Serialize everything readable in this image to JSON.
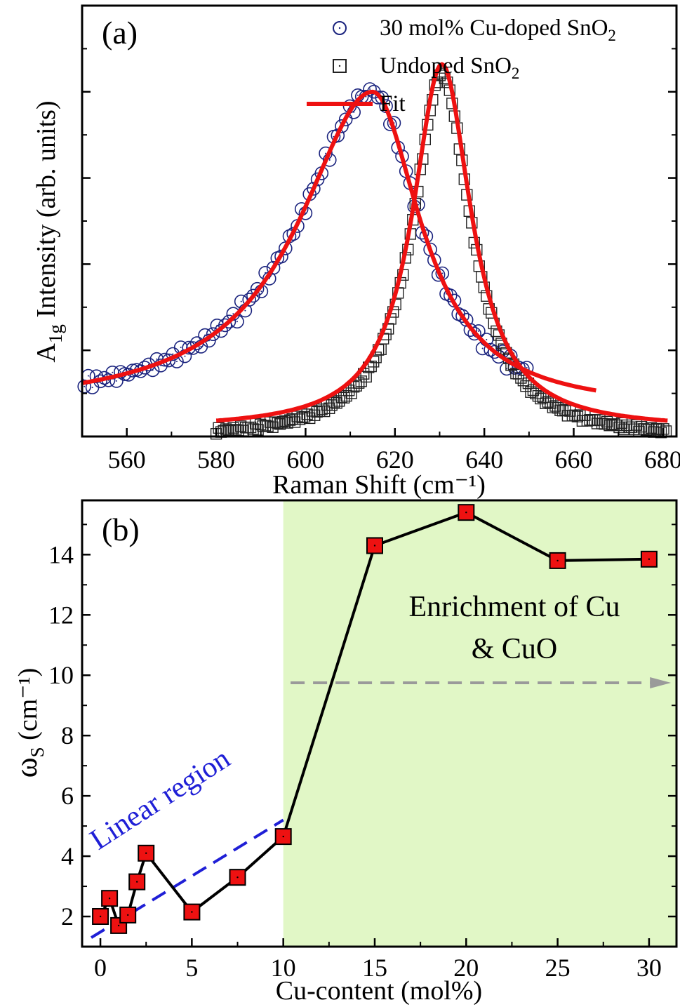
{
  "chart_data": [
    {
      "type": "scatter",
      "panel_label": "(a)",
      "xlabel": "Raman Shift (cm⁻¹)",
      "ylabel_main": "A",
      "ylabel_sub": "1g",
      "ylabel_rest": " Intensity (arb. units)",
      "xlim": [
        550,
        683
      ],
      "ylim": [
        0,
        1.25
      ],
      "xticks": [
        "560",
        "580",
        "600",
        "620",
        "640",
        "660",
        "680"
      ],
      "ytick_labels_shown": false,
      "legend": {
        "position": "top-right",
        "entries": [
          {
            "text": "30 mol% Cu-doped SnO",
            "sub": "2",
            "marker": "circle"
          },
          {
            "text": "Undoped SnO",
            "sub": "2",
            "marker": "square"
          },
          {
            "text": "Fit",
            "sub": "",
            "marker": "line"
          }
        ]
      },
      "series": [
        {
          "name": "30 mol% Cu-doped SnO2",
          "marker": "circle",
          "color": "#1a237e",
          "peak_center": 615,
          "fit_amplitude": 1.0,
          "baseline": 0.075,
          "hwhm_left": 20,
          "hwhm_right": 13,
          "x_range": [
            550,
            650
          ]
        },
        {
          "name": "Undoped SnO2",
          "marker": "square",
          "color": "#222222",
          "peak_center": 630.5,
          "fit_amplitude": 1.08,
          "baseline": 0.02,
          "hwhm_left": 8,
          "hwhm_right": 8,
          "x_range": [
            580,
            681
          ]
        }
      ],
      "fit_color": "#ee1111"
    },
    {
      "type": "line",
      "panel_label": "(b)",
      "xlabel": "Cu-content (mol%)",
      "ylabel_main": "ω",
      "ylabel_sub": "S",
      "ylabel_rest": " (cm⁻¹)",
      "xlim": [
        -1,
        31.5
      ],
      "ylim": [
        1.0,
        15.8
      ],
      "xticks": [
        "0",
        "5",
        "10",
        "15",
        "20",
        "25",
        "30"
      ],
      "yticks": [
        "2",
        "4",
        "6",
        "8",
        "10",
        "12",
        "14"
      ],
      "series": [
        {
          "name": "",
          "marker": "square",
          "marker_color": "#ee1111",
          "line_color": "#000000",
          "x": [
            0,
            0.5,
            1,
            1.5,
            2,
            2.5,
            5,
            7.5,
            10,
            15,
            20,
            25,
            30
          ],
          "y": [
            2.0,
            2.6,
            1.7,
            2.05,
            3.15,
            4.1,
            2.15,
            3.3,
            4.65,
            14.3,
            15.4,
            13.8,
            13.85
          ]
        }
      ],
      "linear_fit": {
        "x": [
          -0.5,
          10
        ],
        "y": [
          1.3,
          5.2
        ],
        "color": "#1f1fd6"
      },
      "shaded_region": {
        "x_from": 10,
        "x_to": 31.5,
        "color": "#e1f7c6"
      },
      "threshold_arrow": {
        "y": 9.75,
        "x_from": 10.4,
        "x_to": 31.2,
        "color": "#9a9a9a"
      },
      "annotations": {
        "linear_region": "Linear region",
        "enrichment_line1": "Enrichment of Cu",
        "enrichment_line2": "& CuO"
      }
    }
  ]
}
